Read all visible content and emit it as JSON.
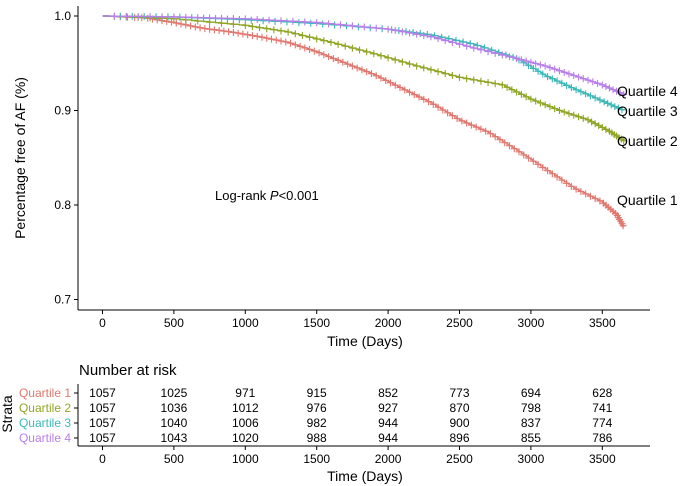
{
  "chart_data": {
    "type": "line",
    "subtype": "kaplan-meier survival curve",
    "xlabel": "Time (Days)",
    "ylabel": "Percentage free of AF (%)",
    "xlim": [
      0,
      3650
    ],
    "ylim": [
      0.7,
      1.0
    ],
    "x_ticks": [
      0,
      500,
      1000,
      1500,
      2000,
      2500,
      3000,
      3500
    ],
    "y_ticks": [
      0.7,
      0.8,
      0.9,
      1.0
    ],
    "x_tick_labels": [
      "0",
      "500",
      "1000",
      "1500",
      "2000",
      "2500",
      "3000",
      "3500"
    ],
    "y_tick_labels": [
      "0.7",
      "0.8",
      "0.9",
      "1.0"
    ],
    "grid": false,
    "legend": "labels at line ends",
    "annotation": {
      "prefix": "Log-rank ",
      "italic": "P",
      "suffix": "<0.001"
    },
    "series": [
      {
        "name": "Quartile 1",
        "color": "#e0766d",
        "points": [
          [
            0,
            1.0
          ],
          [
            300,
            0.998
          ],
          [
            500,
            0.993
          ],
          [
            700,
            0.987
          ],
          [
            900,
            0.983
          ],
          [
            1100,
            0.978
          ],
          [
            1300,
            0.972
          ],
          [
            1500,
            0.962
          ],
          [
            1700,
            0.95
          ],
          [
            1900,
            0.938
          ],
          [
            2100,
            0.923
          ],
          [
            2300,
            0.908
          ],
          [
            2500,
            0.89
          ],
          [
            2700,
            0.877
          ],
          [
            2900,
            0.858
          ],
          [
            3100,
            0.838
          ],
          [
            3300,
            0.818
          ],
          [
            3500,
            0.803
          ],
          [
            3600,
            0.79
          ],
          [
            3650,
            0.777
          ]
        ]
      },
      {
        "name": "Quartile 2",
        "color": "#8fa625",
        "points": [
          [
            0,
            1.0
          ],
          [
            500,
            0.997
          ],
          [
            1000,
            0.99
          ],
          [
            1300,
            0.983
          ],
          [
            1600,
            0.972
          ],
          [
            1900,
            0.96
          ],
          [
            2200,
            0.947
          ],
          [
            2500,
            0.935
          ],
          [
            2800,
            0.927
          ],
          [
            3000,
            0.912
          ],
          [
            3200,
            0.9
          ],
          [
            3400,
            0.89
          ],
          [
            3550,
            0.878
          ],
          [
            3650,
            0.868
          ]
        ]
      },
      {
        "name": "Quartile 3",
        "color": "#3cb8b8",
        "points": [
          [
            0,
            1.0
          ],
          [
            500,
            0.999
          ],
          [
            1000,
            0.996
          ],
          [
            1500,
            0.992
          ],
          [
            2000,
            0.986
          ],
          [
            2300,
            0.98
          ],
          [
            2600,
            0.97
          ],
          [
            2900,
            0.955
          ],
          [
            3100,
            0.937
          ],
          [
            3300,
            0.923
          ],
          [
            3500,
            0.91
          ],
          [
            3650,
            0.9
          ]
        ]
      },
      {
        "name": "Quartile 4",
        "color": "#b87fea",
        "points": [
          [
            0,
            1.0
          ],
          [
            500,
            0.999
          ],
          [
            1000,
            0.997
          ],
          [
            1500,
            0.993
          ],
          [
            2000,
            0.986
          ],
          [
            2300,
            0.978
          ],
          [
            2600,
            0.966
          ],
          [
            2900,
            0.955
          ],
          [
            3100,
            0.947
          ],
          [
            3300,
            0.937
          ],
          [
            3500,
            0.927
          ],
          [
            3650,
            0.917
          ]
        ]
      }
    ],
    "risk_table": {
      "title": "Number at risk",
      "strata_title": "Strata",
      "xlabel": "Time (Days)",
      "times": [
        0,
        500,
        1000,
        1500,
        2000,
        2500,
        3000,
        3500
      ],
      "rows": [
        {
          "name": "Quartile 1",
          "color": "#e0766d",
          "values": [
            1057,
            1025,
            971,
            915,
            852,
            773,
            694,
            628
          ]
        },
        {
          "name": "Quartile 2",
          "color": "#8fa625",
          "values": [
            1057,
            1036,
            1012,
            976,
            927,
            870,
            798,
            741
          ]
        },
        {
          "name": "Quartile 3",
          "color": "#3cb8b8",
          "values": [
            1057,
            1040,
            1006,
            982,
            944,
            900,
            837,
            774
          ]
        },
        {
          "name": "Quartile 4",
          "color": "#b87fea",
          "values": [
            1057,
            1043,
            1020,
            988,
            944,
            896,
            855,
            786
          ]
        }
      ]
    }
  }
}
